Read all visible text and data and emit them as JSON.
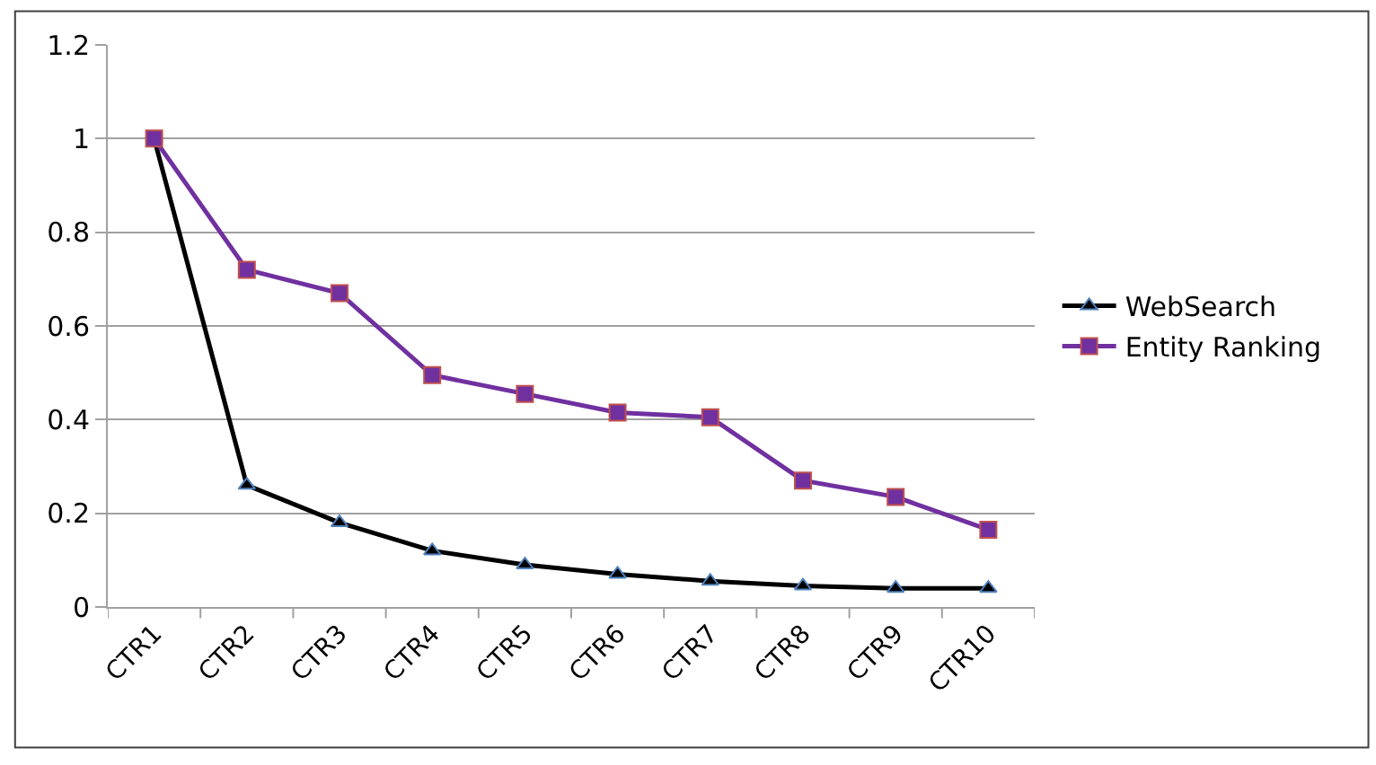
{
  "chart_data": {
    "type": "line",
    "categories": [
      "CTR1",
      "CTR2",
      "CTR3",
      "CTR4",
      "CTR5",
      "CTR6",
      "CTR7",
      "CTR8",
      "CTR9",
      "CTR10"
    ],
    "series": [
      {
        "name": "WebSearch",
        "color": "#000000",
        "marker": "triangle",
        "values": [
          1,
          0.26,
          0.18,
          0.12,
          0.09,
          0.07,
          0.055,
          0.045,
          0.04,
          0.04
        ]
      },
      {
        "name": "Entity Ranking",
        "color": "#7030a0",
        "marker": "square",
        "values": [
          1,
          0.72,
          0.67,
          0.495,
          0.455,
          0.415,
          0.405,
          0.27,
          0.235,
          0.165
        ]
      }
    ],
    "ylim": [
      0,
      1.2
    ],
    "yticks": [
      0,
      0.2,
      0.4,
      0.6,
      0.8,
      1,
      1.2
    ],
    "grid": "y",
    "legend": "right"
  }
}
